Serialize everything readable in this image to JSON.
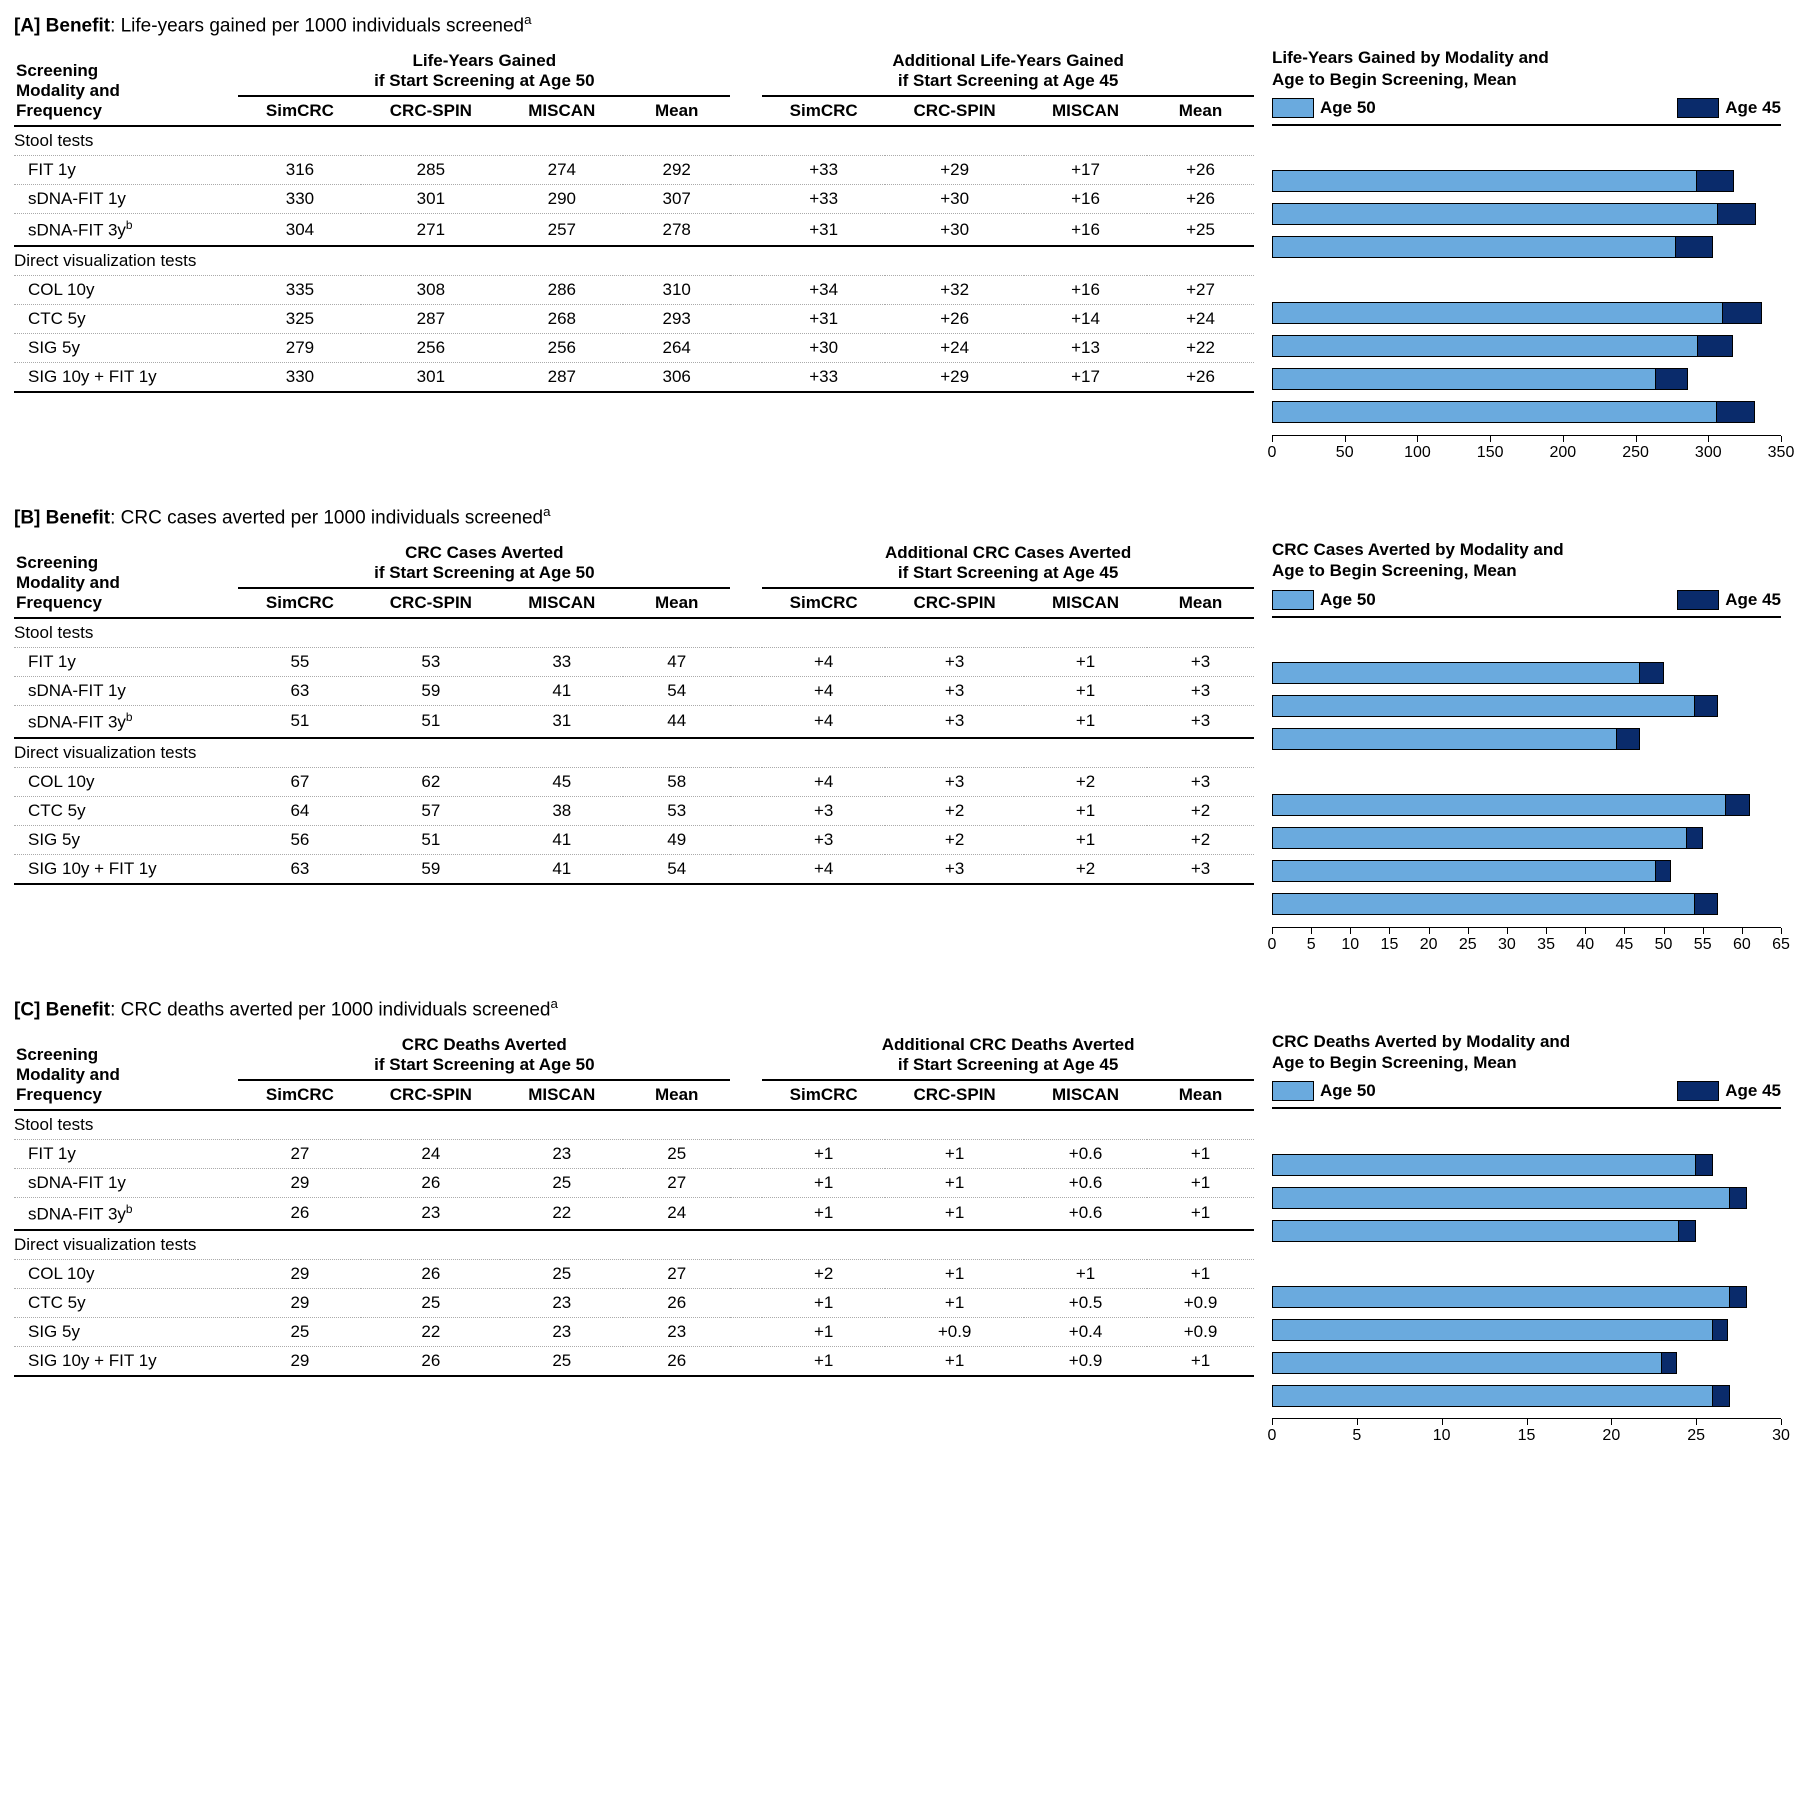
{
  "colors": {
    "age50": "#6aaade",
    "age45": "#0a2b6b",
    "border": "#000000"
  },
  "legend": {
    "age50": "Age 50",
    "age45": "Age 45"
  },
  "columns_left": "Screening Modality and Frequency",
  "subcols": [
    "SimCRC",
    "CRC-SPIN",
    "MISCAN",
    "Mean"
  ],
  "sections": [
    {
      "name": "Stool tests",
      "rows": [
        "FIT 1y",
        "sDNA-FIT 1y",
        "sDNA-FIT 3y<sup>b</sup>"
      ]
    },
    {
      "name": "Direct visualization tests",
      "rows": [
        "COL 10y",
        "CTC 5y",
        "SIG 5y",
        "SIG 10y + FIT 1y"
      ]
    }
  ],
  "panels": [
    {
      "id": "A",
      "title_bold": "[A] Benefit",
      "title_rest": ": Life-years gained per 1000 individuals screened",
      "group50": "Life-Years Gained if Start Screening at Age 50",
      "group45": "Additional Life-Years Gained if Start Screening at Age 45",
      "chart_title": "Life-Years Gained by Modality and Age to Begin Screening, Mean",
      "xmax": 350,
      "xtick_step": 50,
      "rows": [
        {
          "v50": [
            316,
            285,
            274,
            292
          ],
          "v45": [
            "+33",
            "+29",
            "+17",
            "+26"
          ],
          "mean50": 292,
          "mean45": 26
        },
        {
          "v50": [
            330,
            301,
            290,
            307
          ],
          "v45": [
            "+33",
            "+30",
            "+16",
            "+26"
          ],
          "mean50": 307,
          "mean45": 26
        },
        {
          "v50": [
            304,
            271,
            257,
            278
          ],
          "v45": [
            "+31",
            "+30",
            "+16",
            "+25"
          ],
          "mean50": 278,
          "mean45": 25
        },
        {
          "v50": [
            335,
            308,
            286,
            310
          ],
          "v45": [
            "+34",
            "+32",
            "+16",
            "+27"
          ],
          "mean50": 310,
          "mean45": 27
        },
        {
          "v50": [
            325,
            287,
            268,
            293
          ],
          "v45": [
            "+31",
            "+26",
            "+14",
            "+24"
          ],
          "mean50": 293,
          "mean45": 24
        },
        {
          "v50": [
            279,
            256,
            256,
            264
          ],
          "v45": [
            "+30",
            "+24",
            "+13",
            "+22"
          ],
          "mean50": 264,
          "mean45": 22
        },
        {
          "v50": [
            330,
            301,
            287,
            306
          ],
          "v45": [
            "+33",
            "+29",
            "+17",
            "+26"
          ],
          "mean50": 306,
          "mean45": 26
        }
      ]
    },
    {
      "id": "B",
      "title_bold": "[B] Benefit",
      "title_rest": ": CRC cases averted per 1000 individuals screened",
      "group50": "CRC Cases Averted if Start Screening at Age 50",
      "group45": "Additional CRC Cases Averted if Start Screening at Age 45",
      "chart_title": "CRC Cases Averted by Modality and Age to Begin Screening, Mean",
      "xmax": 65,
      "xtick_step": 5,
      "rows": [
        {
          "v50": [
            55,
            53,
            33,
            47
          ],
          "v45": [
            "+4",
            "+3",
            "+1",
            "+3"
          ],
          "mean50": 47,
          "mean45": 3
        },
        {
          "v50": [
            63,
            59,
            41,
            54
          ],
          "v45": [
            "+4",
            "+3",
            "+1",
            "+3"
          ],
          "mean50": 54,
          "mean45": 3
        },
        {
          "v50": [
            51,
            51,
            31,
            44
          ],
          "v45": [
            "+4",
            "+3",
            "+1",
            "+3"
          ],
          "mean50": 44,
          "mean45": 3
        },
        {
          "v50": [
            67,
            62,
            45,
            58
          ],
          "v45": [
            "+4",
            "+3",
            "+2",
            "+3"
          ],
          "mean50": 58,
          "mean45": 3
        },
        {
          "v50": [
            64,
            57,
            38,
            53
          ],
          "v45": [
            "+3",
            "+2",
            "+1",
            "+2"
          ],
          "mean50": 53,
          "mean45": 2
        },
        {
          "v50": [
            56,
            51,
            41,
            49
          ],
          "v45": [
            "+3",
            "+2",
            "+1",
            "+2"
          ],
          "mean50": 49,
          "mean45": 2
        },
        {
          "v50": [
            63,
            59,
            41,
            54
          ],
          "v45": [
            "+4",
            "+3",
            "+2",
            "+3"
          ],
          "mean50": 54,
          "mean45": 3
        }
      ]
    },
    {
      "id": "C",
      "title_bold": "[C] Benefit",
      "title_rest": ": CRC deaths averted per 1000 individuals screened",
      "group50": "CRC Deaths Averted if Start Screening at Age 50",
      "group45": "Additional CRC Deaths Averted if Start Screening at Age 45",
      "chart_title": "CRC Deaths Averted by Modality and Age to Begin Screening, Mean",
      "xmax": 30,
      "xtick_step": 5,
      "rows": [
        {
          "v50": [
            27,
            24,
            23,
            25
          ],
          "v45": [
            "+1",
            "+1",
            "+0.6",
            "+1"
          ],
          "mean50": 25,
          "mean45": 1
        },
        {
          "v50": [
            29,
            26,
            25,
            27
          ],
          "v45": [
            "+1",
            "+1",
            "+0.6",
            "+1"
          ],
          "mean50": 27,
          "mean45": 1
        },
        {
          "v50": [
            26,
            23,
            22,
            24
          ],
          "v45": [
            "+1",
            "+1",
            "+0.6",
            "+1"
          ],
          "mean50": 24,
          "mean45": 1
        },
        {
          "v50": [
            29,
            26,
            25,
            27
          ],
          "v45": [
            "+2",
            "+1",
            "+1",
            "+1"
          ],
          "mean50": 27,
          "mean45": 1
        },
        {
          "v50": [
            29,
            25,
            23,
            26
          ],
          "v45": [
            "+1",
            "+1",
            "+0.5",
            "+0.9"
          ],
          "mean50": 26,
          "mean45": 0.9
        },
        {
          "v50": [
            25,
            22,
            23,
            23
          ],
          "v45": [
            "+1",
            "+0.9",
            "+0.4",
            "+0.9"
          ],
          "mean50": 23,
          "mean45": 0.9
        },
        {
          "v50": [
            29,
            26,
            25,
            26
          ],
          "v45": [
            "+1",
            "+1",
            "+0.9",
            "+1"
          ],
          "mean50": 26,
          "mean45": 1
        }
      ]
    }
  ]
}
